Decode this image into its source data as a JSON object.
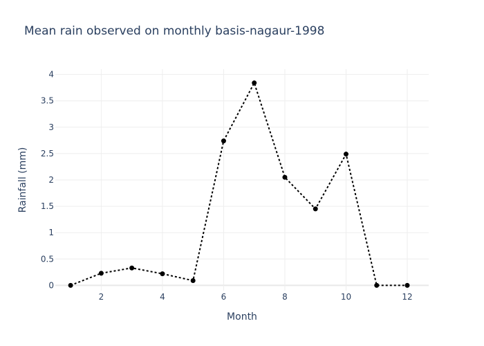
{
  "chart_data": {
    "type": "line",
    "title": "Mean rain observed on monthly basis-nagaur-1998",
    "xlabel": "Month",
    "ylabel": "Rainfall (mm)",
    "x": [
      1,
      2,
      3,
      4,
      5,
      6,
      7,
      8,
      9,
      10,
      11,
      12
    ],
    "series": [
      {
        "values": [
          0,
          0.23,
          0.33,
          0.22,
          0.09,
          2.74,
          3.84,
          2.05,
          1.45,
          2.49,
          0,
          0
        ],
        "line_style": "dotted",
        "marker": "circle",
        "color": "#000000"
      }
    ],
    "xlim": [
      0.5,
      12.7
    ],
    "ylim": [
      -0.1,
      4.1
    ],
    "xticks": [
      2,
      4,
      6,
      8,
      10,
      12
    ],
    "yticks": [
      0,
      0.5,
      1,
      1.5,
      2,
      2.5,
      3,
      3.5,
      4
    ],
    "xtick_labels": [
      "2",
      "4",
      "6",
      "8",
      "10",
      "12"
    ],
    "ytick_labels": [
      "0",
      "0.5",
      "1",
      "1.5",
      "2",
      "2.5",
      "3",
      "3.5",
      "4"
    ],
    "grid": true
  }
}
